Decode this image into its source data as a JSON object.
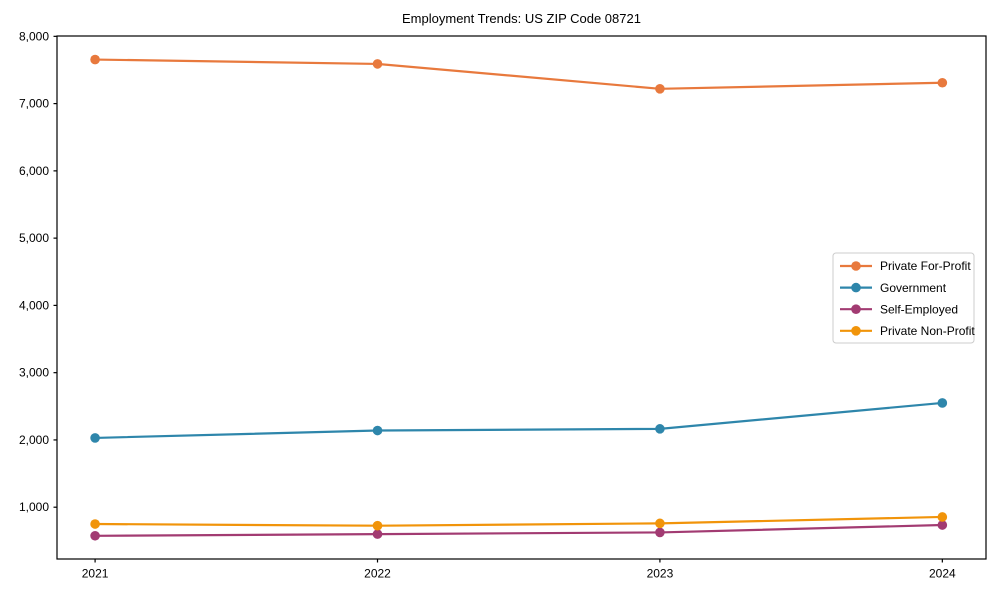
{
  "chart_data": {
    "type": "line",
    "title": "Employment Trends: US ZIP Code 08721",
    "xlabel": "",
    "ylabel": "",
    "categories": [
      "2021",
      "2022",
      "2023",
      "2024"
    ],
    "series": [
      {
        "name": "Private For-Profit",
        "color": "#E8793D",
        "values": [
          7655,
          7590,
          7220,
          7310
        ]
      },
      {
        "name": "Government",
        "color": "#2E86AB",
        "values": [
          2030,
          2140,
          2165,
          2550
        ]
      },
      {
        "name": "Self-Employed",
        "color": "#A23B72",
        "values": [
          575,
          600,
          625,
          735
        ]
      },
      {
        "name": "Private Non-Profit",
        "color": "#F1940A",
        "values": [
          750,
          725,
          760,
          855
        ]
      }
    ],
    "ylim": [
      230,
      8005
    ],
    "yticks": [
      1000,
      2000,
      3000,
      4000,
      5000,
      6000,
      7000,
      8000
    ],
    "ytick_labels": [
      "1,000",
      "2,000",
      "3,000",
      "4,000",
      "5,000",
      "6,000",
      "7,000",
      "8,000"
    ],
    "legend_position": "center right",
    "grid": false,
    "marker": "circle",
    "axis_color": "#000000",
    "legend_border_color": "#cccccc",
    "background_color": "#ffffff"
  }
}
